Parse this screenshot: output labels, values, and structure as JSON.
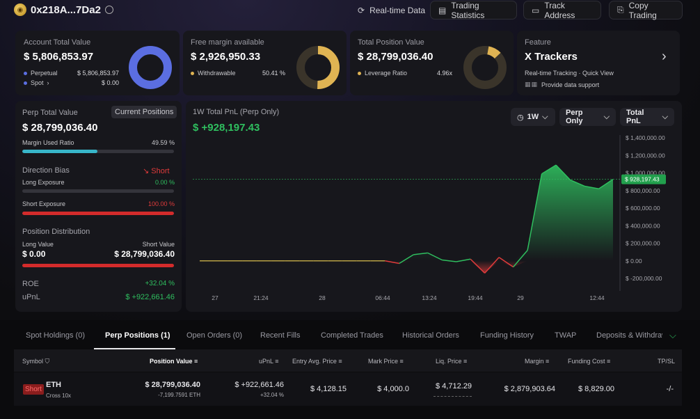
{
  "header": {
    "address": "0x218A...7Da2",
    "buttons": {
      "realtime": "Real-time Data",
      "trading_stats": "Trading Statistics",
      "track_address": "Track Address",
      "copy_trading": "Copy Trading"
    }
  },
  "cards": {
    "account_total": {
      "title": "Account Total Value",
      "value": "$ 5,806,853.97",
      "perpetual_label": "Perpetual",
      "perpetual_value": "$ 5,806,853.97",
      "spot_label": "Spot",
      "spot_value": "$ 0.00",
      "colors": {
        "perpetual": "#5b6ee1",
        "spot": "#5b6ee1"
      }
    },
    "free_margin": {
      "title": "Free margin available",
      "value": "$ 2,926,950.33",
      "withdrawable_label": "Withdrawable",
      "withdrawable_value": "50.41 %",
      "withdrawable_pct": 50.41,
      "color": "#e0b453"
    },
    "total_position": {
      "title": "Total Position Value",
      "value": "$ 28,799,036.40",
      "leverage_label": "Leverage Ratio",
      "leverage_value": "4.96x",
      "color": "#e0b453"
    },
    "feature": {
      "title": "Feature",
      "name": "X Trackers",
      "desc": "Real-time Tracking · Quick View",
      "support": "Provide data support"
    }
  },
  "perp": {
    "title": "Perp Total Value",
    "current_positions": "Current Positions",
    "value": "$ 28,799,036.40",
    "margin_used_label": "Margin Used Ratio",
    "margin_used_value": "49.59 %",
    "margin_used_pct": 49.59,
    "direction_label": "Direction Bias",
    "direction_value": "Short",
    "long_exposure_label": "Long Exposure",
    "long_exposure_value": "0.00 %",
    "long_exposure_pct": 0,
    "short_exposure_label": "Short Exposure",
    "short_exposure_value": "100.00 %",
    "short_exposure_pct": 100,
    "distribution_label": "Position Distribution",
    "long_value_label": "Long Value",
    "short_value_label": "Short Value",
    "long_value": "$ 0.00",
    "short_value": "$ 28,799,036.40",
    "roe_label": "ROE",
    "roe_value": "+32.04 %",
    "upnl_label": "uPnL",
    "upnl_value": "$ +922,661.46"
  },
  "pnl_chart": {
    "title": "1W Total PnL (Perp Only)",
    "value": "$ +928,197.43",
    "controls": {
      "range": "1W",
      "scope": "Perp Only",
      "metric": "Total PnL"
    },
    "current_label": "$ 928,197.43"
  },
  "chart_data": {
    "type": "area",
    "title": "1W Total PnL (Perp Only)",
    "x_tick_labels": [
      "27",
      "21:24",
      "28",
      "06:44",
      "13:24",
      "19:44",
      "29",
      "12:44"
    ],
    "y_tick_labels": [
      "$ 1,400,000.00",
      "$ 1,200,000.00",
      "$ 1,000,000.00",
      "$ 800,000.00",
      "$ 600,000.00",
      "$ 400,000.00",
      "$ 200,000.00",
      "$ 0.00",
      "$ -200,000.00"
    ],
    "ylim": [
      -200000,
      1400000
    ],
    "reference_value": 928197.43,
    "series": [
      {
        "values": [
          0,
          0,
          0,
          0,
          0,
          0,
          0,
          0,
          0,
          0,
          0,
          0,
          0,
          0,
          -30000,
          70000,
          90000,
          10000,
          -10000,
          20000,
          -140000,
          40000,
          -70000,
          120000,
          990000,
          1090000,
          920000,
          850000,
          820000,
          928197
        ]
      }
    ],
    "colors": {
      "positive": "#2fbf5f",
      "negative": "#e03b3b",
      "flat": "#b9a245"
    }
  },
  "tabs": [
    "Spot Holdings (0)",
    "Perp Positions (1)",
    "Open Orders (0)",
    "Recent Fills",
    "Completed Trades",
    "Historical Orders",
    "Funding History",
    "TWAP",
    "Deposits & Withdraw"
  ],
  "table": {
    "headers": [
      "Symbol",
      "Position Value",
      "uPnL",
      "Entry Avg. Price",
      "Mark Price",
      "Liq. Price",
      "Margin",
      "Funding Cost",
      "TP/SL"
    ],
    "row": {
      "side": "Short",
      "symbol": "ETH",
      "margin_type": "Cross 10x",
      "position_value": "$ 28,799,036.40",
      "position_size": "-7,199.7591 ETH",
      "upnl": "$ +922,661.46",
      "upnl_pct": "+32.04 %",
      "entry_price": "$ 4,128.15",
      "mark_price": "$ 4,000.0",
      "liq_price": "$ 4,712.29",
      "margin": "$ 2,879,903.64",
      "funding_cost": "$ 8,829.00",
      "tpsl": "-/-"
    }
  }
}
